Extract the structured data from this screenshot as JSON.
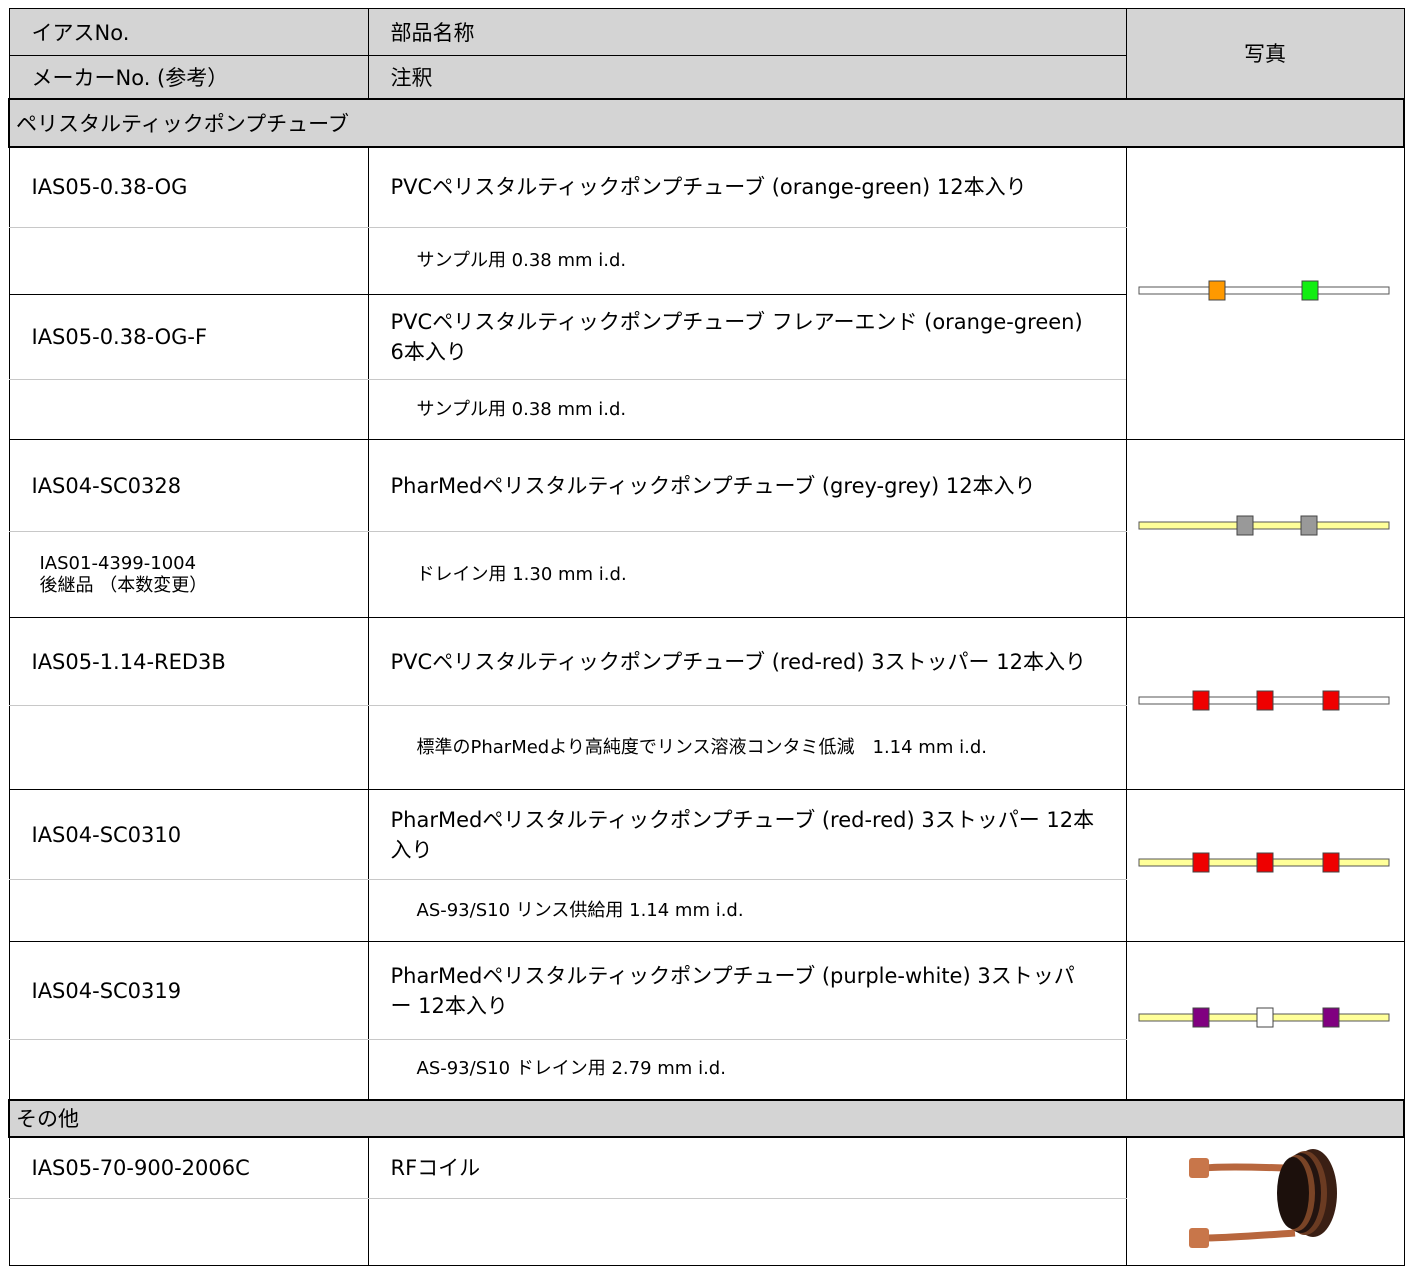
{
  "header": {
    "no": "イアスNo.",
    "maker_no": "メーカーNo. (参考）",
    "name": "部品名称",
    "note": "注釈",
    "photo": "写真"
  },
  "sections": [
    {
      "title": "ペリスタルティックポンプチューブ",
      "items": [
        {
          "no": "IAS05-0.38-OG",
          "name": "PVCペリスタルティックポンプチューブ (orange-green) 12本入り",
          "note": "サンプル用 0.38 mm i.d."
        },
        {
          "no": "IAS05-0.38-OG-F",
          "name": "PVCペリスタルティックポンプチューブ フレアーエンド (orange-green) 6本入り",
          "note": "サンプル用 0.38 mm i.d."
        },
        {
          "no": "IAS04-SC0328",
          "maker_no": [
            "IAS01-4399-1004",
            "後継品 （本数変更）"
          ],
          "name": "PharMedペリスタルティックポンプチューブ (grey-grey) 12本入り",
          "note": "ドレイン用 1.30 mm i.d."
        },
        {
          "no": "IAS05-1.14-RED3B",
          "name": "PVCペリスタルティックポンプチューブ (red-red) 3ストッパー 12本入り",
          "note": "標準のPharMedより高純度でリンス溶液コンタミ低減　1.14 mm i.d."
        },
        {
          "no": "IAS04-SC0310",
          "name": "PharMedペリスタルティックポンプチューブ (red-red) 3ストッパー 12本入り",
          "note": "AS-93/S10 リンス供給用 1.14 mm i.d."
        },
        {
          "no": "IAS04-SC0319",
          "name": "PharMedペリスタルティックポンプチューブ (purple-white) 3ストッパー 12本入り",
          "note": "AS-93/S10 ドレイン用 2.79 mm i.d."
        }
      ]
    },
    {
      "title": "その他",
      "items": [
        {
          "no": "IAS05-70-900-2006C",
          "name": "RFコイル"
        }
      ]
    }
  ]
}
